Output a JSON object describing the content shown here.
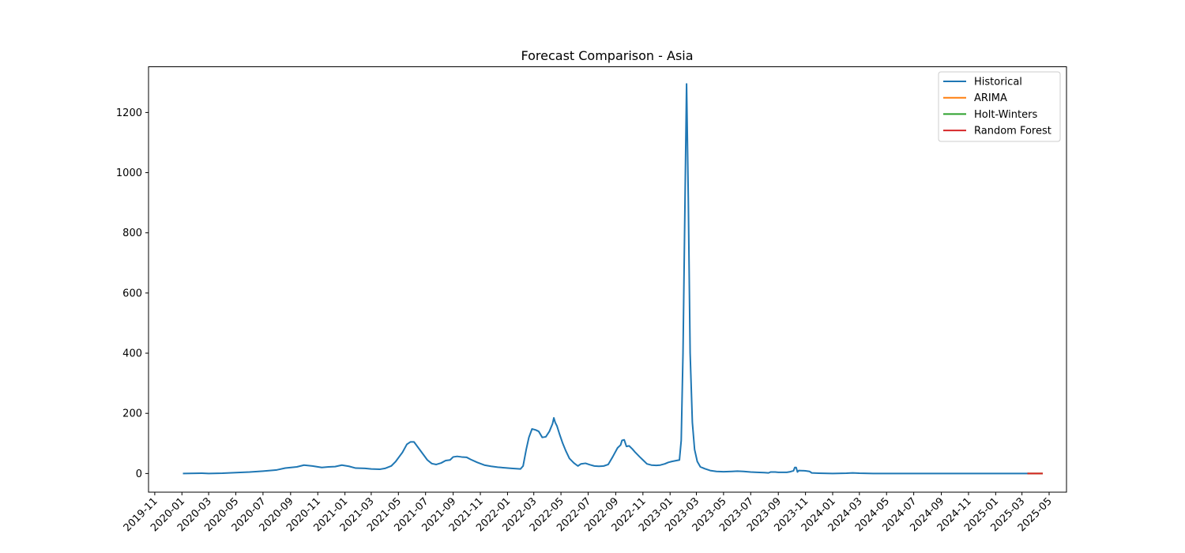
{
  "chart_data": {
    "type": "line",
    "title": "Forecast Comparison - Asia",
    "xlabel": "",
    "ylabel": "",
    "x_range": [
      "2019-10-18",
      "2025-06-09"
    ],
    "ylim": [
      -62,
      1352
    ],
    "grid": false,
    "legend_position": "top-right",
    "y_ticks": [
      0,
      200,
      400,
      600,
      800,
      1000,
      1200
    ],
    "x_ticks": [
      "2019-11",
      "2020-01",
      "2020-03",
      "2020-05",
      "2020-07",
      "2020-09",
      "2020-11",
      "2021-01",
      "2021-03",
      "2021-05",
      "2021-07",
      "2021-09",
      "2021-11",
      "2022-01",
      "2022-03",
      "2022-05",
      "2022-07",
      "2022-09",
      "2022-11",
      "2023-01",
      "2023-03",
      "2023-05",
      "2023-07",
      "2023-09",
      "2023-11",
      "2024-01",
      "2024-03",
      "2024-05",
      "2024-07",
      "2024-09",
      "2024-11",
      "2025-01",
      "2025-03",
      "2025-05"
    ],
    "series": [
      {
        "name": "Historical",
        "color": "#1f77b4",
        "points": [
          [
            "2020-01-05",
            0
          ],
          [
            "2020-02-15",
            1
          ],
          [
            "2020-03-01",
            0
          ],
          [
            "2020-04-01",
            1
          ],
          [
            "2020-05-01",
            3
          ],
          [
            "2020-06-01",
            5
          ],
          [
            "2020-07-01",
            8
          ],
          [
            "2020-08-01",
            12
          ],
          [
            "2020-08-20",
            18
          ],
          [
            "2020-09-15",
            22
          ],
          [
            "2020-10-01",
            28
          ],
          [
            "2020-10-20",
            25
          ],
          [
            "2020-11-10",
            20
          ],
          [
            "2020-11-25",
            22
          ],
          [
            "2020-12-10",
            23
          ],
          [
            "2020-12-25",
            28
          ],
          [
            "2021-01-10",
            24
          ],
          [
            "2021-01-25",
            18
          ],
          [
            "2021-02-15",
            17
          ],
          [
            "2021-03-01",
            15
          ],
          [
            "2021-03-20",
            14
          ],
          [
            "2021-04-01",
            17
          ],
          [
            "2021-04-15",
            25
          ],
          [
            "2021-04-25",
            40
          ],
          [
            "2021-05-10",
            70
          ],
          [
            "2021-05-20",
            97
          ],
          [
            "2021-05-28",
            105
          ],
          [
            "2021-06-05",
            105
          ],
          [
            "2021-06-15",
            85
          ],
          [
            "2021-06-25",
            65
          ],
          [
            "2021-07-05",
            45
          ],
          [
            "2021-07-15",
            33
          ],
          [
            "2021-07-25",
            30
          ],
          [
            "2021-08-05",
            35
          ],
          [
            "2021-08-15",
            43
          ],
          [
            "2021-08-25",
            45
          ],
          [
            "2021-09-01",
            55
          ],
          [
            "2021-09-10",
            57
          ],
          [
            "2021-09-20",
            55
          ],
          [
            "2021-10-01",
            54
          ],
          [
            "2021-10-10",
            47
          ],
          [
            "2021-10-25",
            37
          ],
          [
            "2021-11-10",
            28
          ],
          [
            "2021-11-25",
            24
          ],
          [
            "2021-12-10",
            21
          ],
          [
            "2021-12-25",
            19
          ],
          [
            "2022-01-10",
            17
          ],
          [
            "2022-01-20",
            16
          ],
          [
            "2022-01-30",
            15
          ],
          [
            "2022-02-05",
            25
          ],
          [
            "2022-02-12",
            80
          ],
          [
            "2022-02-18",
            120
          ],
          [
            "2022-02-25",
            148
          ],
          [
            "2022-03-05",
            145
          ],
          [
            "2022-03-12",
            140
          ],
          [
            "2022-03-20",
            120
          ],
          [
            "2022-03-28",
            122
          ],
          [
            "2022-04-05",
            140
          ],
          [
            "2022-04-12",
            165
          ],
          [
            "2022-04-15",
            185
          ],
          [
            "2022-04-18",
            170
          ],
          [
            "2022-04-22",
            158
          ],
          [
            "2022-04-28",
            130
          ],
          [
            "2022-05-05",
            100
          ],
          [
            "2022-05-12",
            75
          ],
          [
            "2022-05-20",
            50
          ],
          [
            "2022-05-30",
            35
          ],
          [
            "2022-06-08",
            25
          ],
          [
            "2022-06-15",
            32
          ],
          [
            "2022-06-25",
            34
          ],
          [
            "2022-07-05",
            29
          ],
          [
            "2022-07-15",
            25
          ],
          [
            "2022-07-25",
            24
          ],
          [
            "2022-08-05",
            25
          ],
          [
            "2022-08-15",
            30
          ],
          [
            "2022-08-25",
            55
          ],
          [
            "2022-09-05",
            85
          ],
          [
            "2022-09-12",
            95
          ],
          [
            "2022-09-15",
            110
          ],
          [
            "2022-09-20",
            112
          ],
          [
            "2022-09-25",
            90
          ],
          [
            "2022-10-01",
            92
          ],
          [
            "2022-10-08",
            82
          ],
          [
            "2022-10-15",
            70
          ],
          [
            "2022-10-25",
            55
          ],
          [
            "2022-11-01",
            45
          ],
          [
            "2022-11-10",
            32
          ],
          [
            "2022-11-20",
            28
          ],
          [
            "2022-12-01",
            27
          ],
          [
            "2022-12-10",
            28
          ],
          [
            "2022-12-20",
            32
          ],
          [
            "2022-12-28",
            37
          ],
          [
            "2023-01-05",
            40
          ],
          [
            "2023-01-15",
            43
          ],
          [
            "2023-01-22",
            45
          ],
          [
            "2023-01-26",
            110
          ],
          [
            "2023-01-30",
            400
          ],
          [
            "2023-02-03",
            850
          ],
          [
            "2023-02-07",
            1295
          ],
          [
            "2023-02-11",
            900
          ],
          [
            "2023-02-15",
            400
          ],
          [
            "2023-02-20",
            170
          ],
          [
            "2023-02-25",
            80
          ],
          [
            "2023-03-03",
            40
          ],
          [
            "2023-03-10",
            22
          ],
          [
            "2023-03-20",
            16
          ],
          [
            "2023-04-01",
            10
          ],
          [
            "2023-04-15",
            7
          ],
          [
            "2023-05-01",
            6
          ],
          [
            "2023-05-20",
            7
          ],
          [
            "2023-06-01",
            8
          ],
          [
            "2023-06-15",
            7
          ],
          [
            "2023-07-01",
            5
          ],
          [
            "2023-07-15",
            4
          ],
          [
            "2023-08-01",
            3
          ],
          [
            "2023-08-10",
            2
          ],
          [
            "2023-08-15",
            5
          ],
          [
            "2023-08-25",
            5
          ],
          [
            "2023-09-01",
            4
          ],
          [
            "2023-09-10",
            4
          ],
          [
            "2023-09-20",
            4
          ],
          [
            "2023-09-28",
            6
          ],
          [
            "2023-10-05",
            9
          ],
          [
            "2023-10-08",
            20
          ],
          [
            "2023-10-11",
            20
          ],
          [
            "2023-10-14",
            5
          ],
          [
            "2023-10-17",
            10
          ],
          [
            "2023-11-01",
            9
          ],
          [
            "2023-11-10",
            7
          ],
          [
            "2023-11-15",
            2
          ],
          [
            "2023-12-01",
            1
          ],
          [
            "2024-01-01",
            0
          ],
          [
            "2024-02-01",
            1
          ],
          [
            "2024-02-15",
            2
          ],
          [
            "2024-03-01",
            1
          ],
          [
            "2024-04-01",
            0
          ],
          [
            "2024-06-01",
            0
          ],
          [
            "2024-09-01",
            0
          ],
          [
            "2024-12-01",
            0
          ],
          [
            "2025-03-01",
            0
          ],
          [
            "2025-03-15",
            0
          ]
        ]
      },
      {
        "name": "ARIMA",
        "color": "#ff7f0e",
        "points": [
          [
            "2025-03-15",
            0
          ],
          [
            "2025-04-15",
            0
          ]
        ]
      },
      {
        "name": "Holt-Winters",
        "color": "#2ca02c",
        "points": [
          [
            "2025-03-15",
            0
          ],
          [
            "2025-04-15",
            0
          ]
        ]
      },
      {
        "name": "Random Forest",
        "color": "#d62728",
        "points": [
          [
            "2025-03-15",
            0
          ],
          [
            "2025-04-15",
            0
          ]
        ]
      }
    ]
  }
}
